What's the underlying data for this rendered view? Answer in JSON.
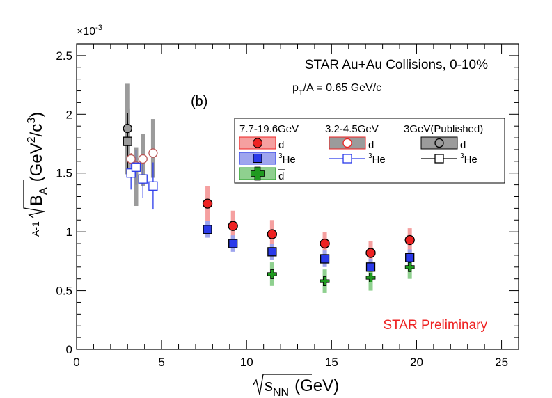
{
  "chart_data": {
    "type": "scatter",
    "title": "STAR Au+Au Collisions, 0-10%",
    "subtitle": "p_T/A = 0.65 GeV/c",
    "panel_label": "(b)",
    "preliminary_label": "STAR Preliminary",
    "xlabel": "√s_NN (GeV)",
    "xlabel_parts": {
      "main": "s",
      "sub": "NN",
      "unit": "(GeV)"
    },
    "ylabel": "A-1√B_A (GeV²/c³)",
    "ylabel_parts": {
      "pre": "A-1",
      "main": "B",
      "sub": "A",
      "unit_open": "(GeV",
      "unit_sup1": "2",
      "unit_mid": "/c",
      "unit_sup2": "3",
      "unit_close": ")"
    },
    "y_multiplier": "×10",
    "y_multiplier_exp": "-3",
    "xlim": [
      0,
      26
    ],
    "ylim": [
      0,
      2.6
    ],
    "x_major_ticks": [
      0,
      5,
      10,
      15,
      20,
      25
    ],
    "x_tick_labels": [
      "0",
      "5",
      "10",
      "15",
      "20",
      "25"
    ],
    "y_major_ticks": [
      0,
      0.5,
      1,
      1.5,
      2,
      2.5
    ],
    "y_tick_labels": [
      "0",
      "0.5",
      "1",
      "1.5",
      "2",
      "2.5"
    ],
    "legend": {
      "placement": "top-right",
      "group_headers": [
        "7.7-19.6GeV",
        "3.2-4.5GeV",
        "3GeV(Published)"
      ],
      "entry_labels": {
        "d_new": "d",
        "he3_new": "He",
        "dbar_new": "d",
        "d_32": "d",
        "he3_32": "He",
        "d_pub": "d",
        "he3_pub": "He"
      },
      "he3_superscript": "3"
    },
    "colors": {
      "d_fill": "#ee2222",
      "d_band": "#f5a0a0",
      "he3_fill": "#2a3aea",
      "he3_band": "#9fa5ee",
      "dbar_fill": "#1f9a1f",
      "dbar_band": "#8fd08f",
      "pub_band": "#9b9b9b",
      "red_open": "#bb5555",
      "blue_open": "#2a3aea",
      "preliminary": "#ee2222"
    },
    "series": [
      {
        "name": "d (7.7-19.6GeV)",
        "marker": "filled-circle",
        "points": [
          {
            "x": 7.7,
            "y": 1.24,
            "sys": 0.15,
            "stat": 0.0
          },
          {
            "x": 9.2,
            "y": 1.05,
            "sys": 0.13,
            "stat": 0.0
          },
          {
            "x": 11.5,
            "y": 0.98,
            "sys": 0.12,
            "stat": 0.0
          },
          {
            "x": 14.6,
            "y": 0.9,
            "sys": 0.1,
            "stat": 0.0
          },
          {
            "x": 17.3,
            "y": 0.82,
            "sys": 0.1,
            "stat": 0.0
          },
          {
            "x": 19.6,
            "y": 0.93,
            "sys": 0.1,
            "stat": 0.0
          }
        ]
      },
      {
        "name": "3He (7.7-19.6GeV)",
        "marker": "filled-square",
        "points": [
          {
            "x": 7.7,
            "y": 1.02,
            "sys": 0.07,
            "stat": 0.0
          },
          {
            "x": 9.2,
            "y": 0.9,
            "sys": 0.07,
            "stat": 0.0
          },
          {
            "x": 11.5,
            "y": 0.83,
            "sys": 0.07,
            "stat": 0.0
          },
          {
            "x": 14.6,
            "y": 0.77,
            "sys": 0.07,
            "stat": 0.0
          },
          {
            "x": 17.3,
            "y": 0.7,
            "sys": 0.07,
            "stat": 0.0
          },
          {
            "x": 19.6,
            "y": 0.78,
            "sys": 0.07,
            "stat": 0.0
          }
        ]
      },
      {
        "name": "dbar (7.7-19.6GeV)",
        "marker": "filled-cross",
        "points": [
          {
            "x": 11.5,
            "y": 0.64,
            "sys": 0.1,
            "stat": 0.0
          },
          {
            "x": 14.6,
            "y": 0.58,
            "sys": 0.1,
            "stat": 0.0
          },
          {
            "x": 17.3,
            "y": 0.61,
            "sys": 0.11,
            "stat": 0.0
          },
          {
            "x": 19.6,
            "y": 0.7,
            "sys": 0.1,
            "stat": 0.0
          }
        ]
      },
      {
        "name": "d (3.2-4.5GeV)",
        "marker": "open-circle",
        "points": [
          {
            "x": 3.2,
            "y": 1.62,
            "sys": 0.0,
            "stat": 0.05
          },
          {
            "x": 3.5,
            "y": 1.56,
            "sys": 0.0,
            "stat": 0.04
          },
          {
            "x": 3.9,
            "y": 1.62,
            "sys": 0.0,
            "stat": 0.04
          },
          {
            "x": 4.5,
            "y": 1.67,
            "sys": 0.0,
            "stat": 0.04
          }
        ]
      },
      {
        "name": "3He (3.2-4.5GeV)",
        "marker": "open-square",
        "points": [
          {
            "x": 3.2,
            "y": 1.5,
            "sys": 0.0,
            "stat": 0.14
          },
          {
            "x": 3.5,
            "y": 1.55,
            "sys": 0.0,
            "stat": 0.15
          },
          {
            "x": 3.9,
            "y": 1.45,
            "sys": 0.0,
            "stat": 0.16
          },
          {
            "x": 4.5,
            "y": 1.39,
            "sys": 0.0,
            "stat": 0.2
          }
        ]
      },
      {
        "name": "d (3GeV Published)",
        "marker": "open-circle",
        "points": [
          {
            "x": 3.0,
            "y": 1.88,
            "sys": 0.38,
            "stat": 0.06
          }
        ]
      },
      {
        "name": "3He (3GeV Published)",
        "marker": "open-square",
        "points": [
          {
            "x": 3.0,
            "y": 1.77,
            "sys": 0.28,
            "stat": 0.24
          }
        ]
      },
      {
        "name": "3.2-4.5GeV systematics",
        "marker": "band",
        "points": [
          {
            "x": 3.5,
            "y": 1.47,
            "sys": 0.25,
            "stat": 0.0
          },
          {
            "x": 3.9,
            "y": 1.61,
            "sys": 0.22,
            "stat": 0.0
          },
          {
            "x": 4.5,
            "y": 1.71,
            "sys": 0.25,
            "stat": 0.0
          }
        ]
      }
    ]
  }
}
